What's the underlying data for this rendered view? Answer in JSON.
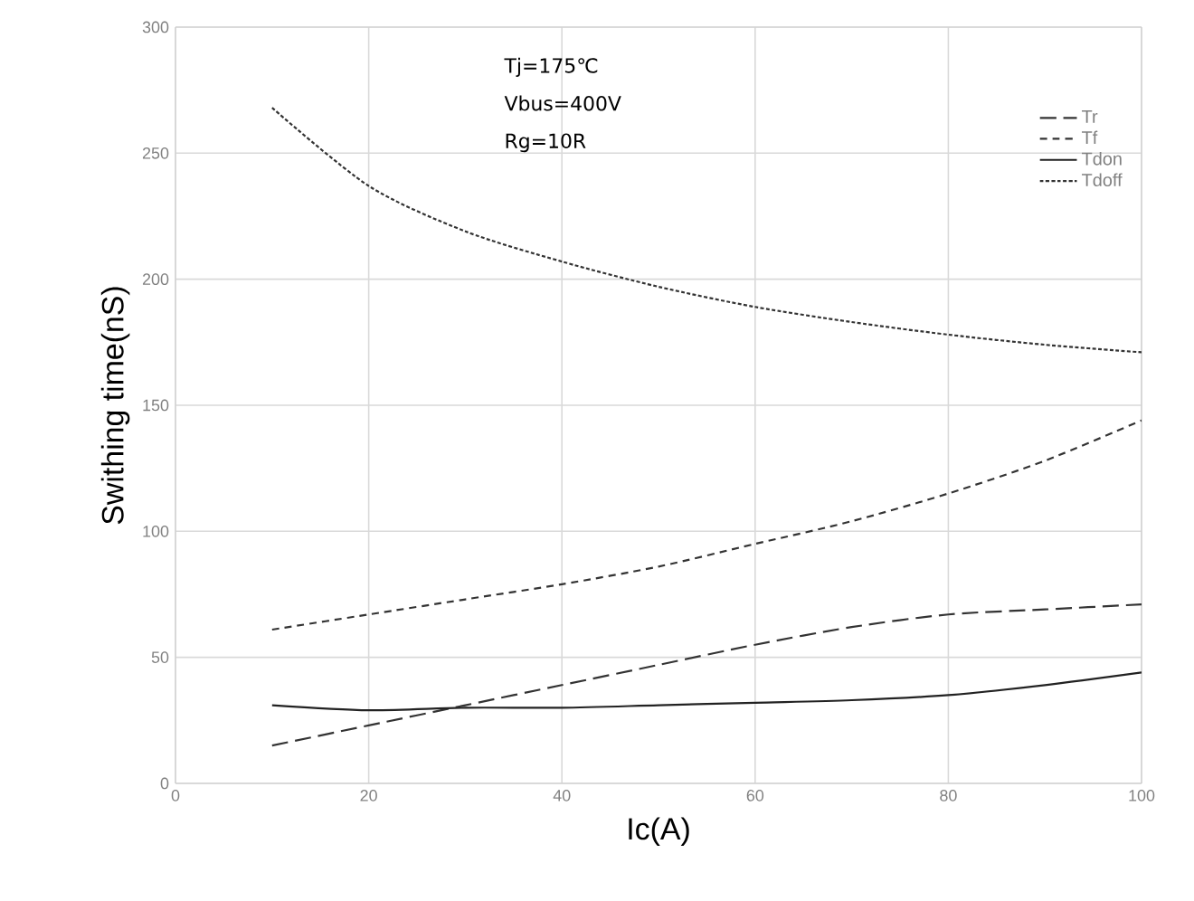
{
  "chart_data": {
    "type": "line",
    "xlabel": "Ic(A)",
    "ylabel": "Swithing time(nS)",
    "annotations": [
      "Tj=175℃",
      "Vbus=400V",
      "Rg=10R"
    ],
    "x": [
      10,
      20,
      30,
      40,
      50,
      60,
      70,
      80,
      90,
      100
    ],
    "series": [
      {
        "name": "Tr",
        "color": "#333333",
        "line_style": "dashed",
        "values": [
          15,
          23,
          31,
          39,
          47,
          55,
          62,
          67,
          69,
          71
        ]
      },
      {
        "name": "Tf",
        "color": "#333333",
        "line_style": "dashed",
        "values": [
          61,
          67,
          73,
          79,
          86,
          95,
          104,
          115,
          128,
          144
        ]
      },
      {
        "name": "Tdon",
        "color": "#222222",
        "line_style": "solid",
        "values": [
          31,
          29,
          30,
          30,
          31,
          32,
          33,
          35,
          39,
          44
        ]
      },
      {
        "name": "Tdoff",
        "color": "#333333",
        "line_style": "dotted",
        "values": [
          268,
          237,
          219,
          207,
          197,
          189,
          183,
          178,
          174,
          171
        ]
      }
    ],
    "xlim": [
      0,
      100
    ],
    "ylim": [
      0,
      300
    ],
    "xticks": [
      0,
      20,
      40,
      60,
      80,
      100
    ],
    "yticks": [
      0,
      50,
      100,
      150,
      200,
      250,
      300
    ],
    "grid": true,
    "legend": "top right",
    "marker": "none"
  }
}
